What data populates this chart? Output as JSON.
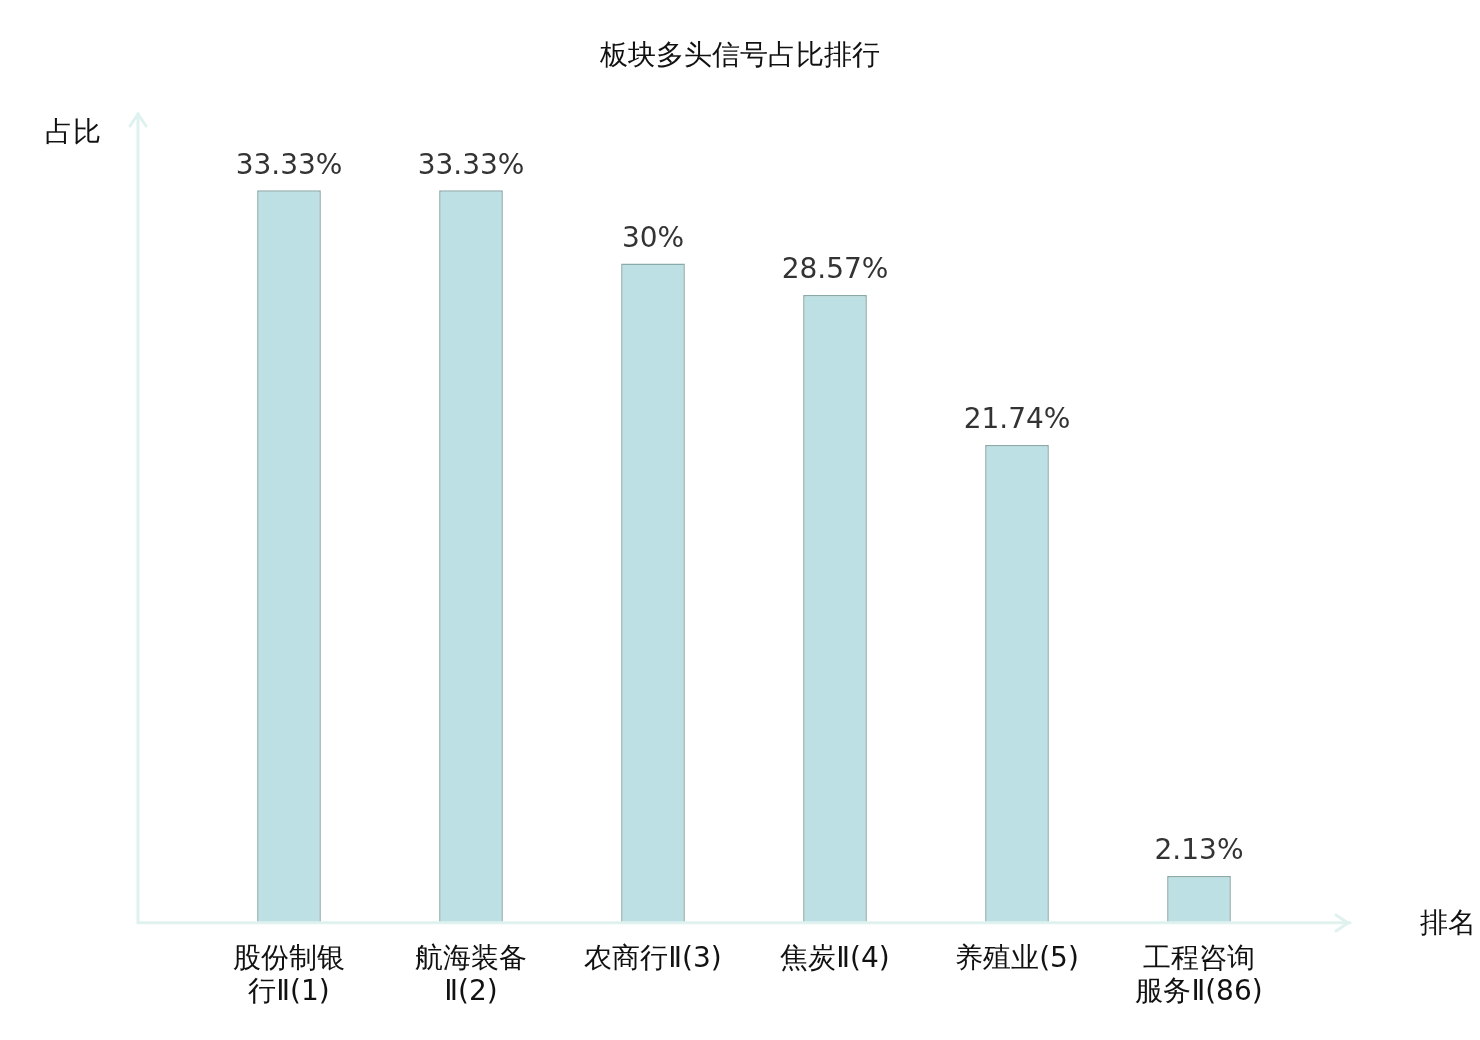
{
  "chart_data": {
    "type": "bar",
    "title": "板块多头信号占比排行",
    "xlabel": "排名",
    "ylabel": "占比",
    "categories": [
      "股份制银行Ⅱ(1)",
      "航海装备Ⅱ(2)",
      "农商行Ⅱ(3)",
      "焦炭Ⅱ(4)",
      "养殖业(5)",
      "工程咨询服务Ⅱ(86)"
    ],
    "values": [
      33.33,
      33.33,
      30,
      28.57,
      21.74,
      2.13
    ],
    "value_labels": [
      "33.33%",
      "33.33%",
      "30%",
      "28.57%",
      "21.74%",
      "2.13%"
    ],
    "color": "#bce0e3",
    "grid": false,
    "legend": false
  }
}
